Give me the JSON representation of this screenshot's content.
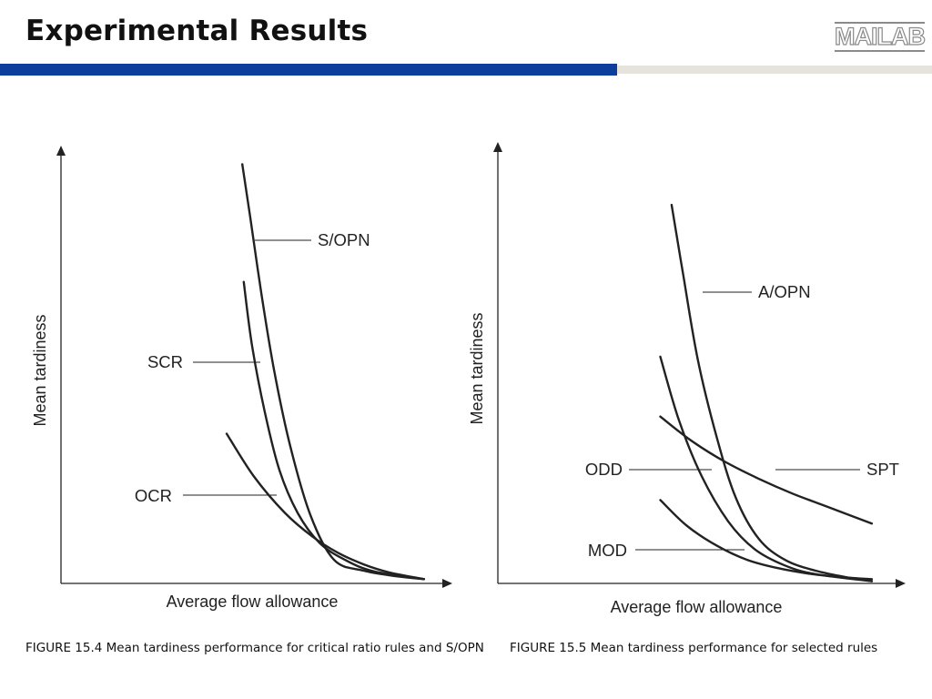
{
  "slide": {
    "title": "Experimental Results",
    "logo": "MAILAB",
    "colors": {
      "header_blue": "#0b3f9b",
      "header_gray": "#e5e3dc",
      "curve": "#222222"
    }
  },
  "chart_data": [
    {
      "type": "line",
      "xlabel": "Average flow allowance",
      "ylabel": "Mean tardiness",
      "caption": "FIGURE 15.4 Mean tardiness performance for critical ratio rules and S/OPN",
      "x_ticks": false,
      "y_ticks": false,
      "xlim": [
        0,
        10
      ],
      "ylim": [
        0,
        10
      ],
      "series": [
        {
          "name": "S/OPN",
          "x": [
            4.98,
            5.2,
            5.5,
            5.85,
            6.3,
            6.85,
            7.5,
            8.3,
            9.1,
            9.97
          ],
          "y": [
            9.8,
            8.55,
            6.8,
            5.0,
            3.2,
            1.6,
            0.55,
            0.3,
            0.18,
            0.1
          ]
        },
        {
          "name": "SCR",
          "x": [
            5.02,
            5.25,
            5.6,
            6.0,
            6.5,
            7.1,
            7.8,
            8.6,
            9.97
          ],
          "y": [
            7.05,
            5.55,
            4.0,
            2.65,
            1.65,
            0.95,
            0.55,
            0.28,
            0.1
          ]
        },
        {
          "name": "OCR",
          "x": [
            4.55,
            5.3,
            6.15,
            6.9,
            7.6,
            8.3,
            9.0,
            9.97
          ],
          "y": [
            3.5,
            2.5,
            1.65,
            1.1,
            0.72,
            0.45,
            0.26,
            0.1
          ]
        }
      ],
      "annotations": [
        "S/OPN",
        "SCR",
        "OCR"
      ]
    },
    {
      "type": "line",
      "xlabel": "Average flow allowance",
      "ylabel": "Mean tardiness",
      "caption": "FIGURE 15.5 Mean tardiness performance for selected rules",
      "x_ticks": false,
      "y_ticks": false,
      "xlim": [
        0,
        10
      ],
      "ylim": [
        0,
        10
      ],
      "series": [
        {
          "name": "A/OPN",
          "x": [
            4.6,
            4.9,
            5.3,
            5.8,
            6.3,
            6.9,
            7.6,
            8.4,
            9.2,
            9.9
          ],
          "y": [
            8.85,
            7.25,
            5.2,
            3.4,
            2.0,
            1.05,
            0.55,
            0.3,
            0.15,
            0.05
          ]
        },
        {
          "name": "ODD",
          "x": [
            4.3,
            4.8,
            5.4,
            6.1,
            6.8,
            7.6,
            8.4,
            9.9
          ],
          "y": [
            5.3,
            3.8,
            2.5,
            1.45,
            0.8,
            0.42,
            0.22,
            0.05
          ]
        },
        {
          "name": "SPT",
          "x": [
            4.3,
            5.1,
            6.0,
            6.9,
            7.8,
            8.7,
            9.9
          ],
          "y": [
            3.9,
            3.35,
            2.85,
            2.45,
            2.1,
            1.8,
            1.4
          ]
        },
        {
          "name": "MOD",
          "x": [
            4.3,
            5.0,
            5.8,
            6.6,
            7.4,
            8.3,
            9.2,
            9.9
          ],
          "y": [
            1.95,
            1.35,
            0.88,
            0.55,
            0.36,
            0.22,
            0.14,
            0.1
          ]
        }
      ],
      "annotations": [
        "A/OPN",
        "ODD",
        "SPT",
        "MOD"
      ]
    }
  ]
}
